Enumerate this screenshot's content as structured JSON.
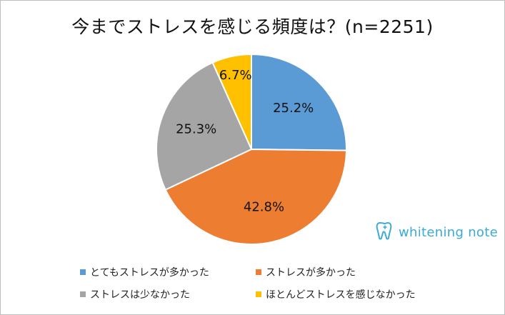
{
  "chart_data": {
    "type": "pie",
    "title": "今までストレスを感じる頻度は？(n=2251)",
    "slices": [
      {
        "name": "とてもストレスが多かった",
        "value": 25.2,
        "label": "25.2%",
        "color": "#5b9bd5"
      },
      {
        "name": "ストレスが多かった",
        "value": 42.8,
        "label": "42.8%",
        "color": "#ed7d31"
      },
      {
        "name": "ストレスは少なかった",
        "value": 25.3,
        "label": "25.3%",
        "color": "#a5a5a5"
      },
      {
        "name": "ほとんどストレスを感じなかった",
        "value": 6.7,
        "label": "6.7%",
        "color": "#ffc000"
      }
    ],
    "legend_position": "bottom"
  },
  "brand": {
    "text": "whitening note",
    "icon": "tooth-icon",
    "color": "#3aaad6"
  },
  "colors": {
    "border": "#bfbfbf",
    "slice_separator": "#ffffff"
  }
}
